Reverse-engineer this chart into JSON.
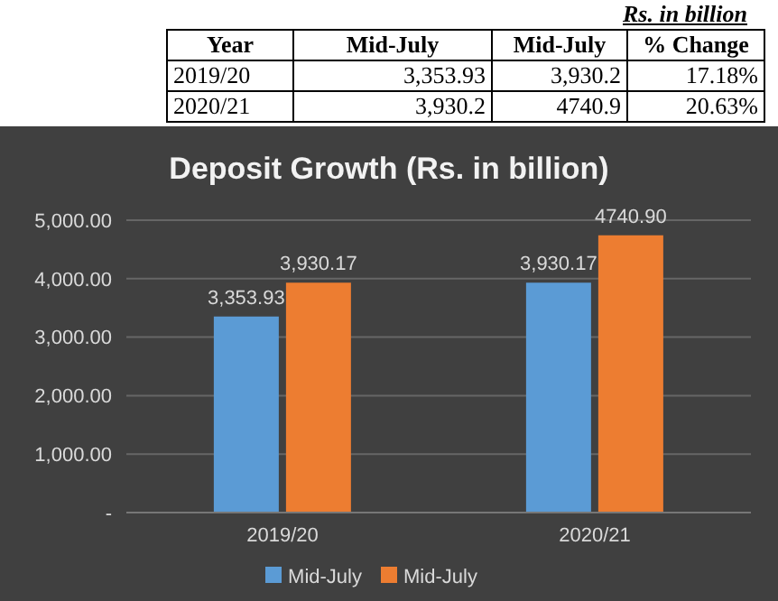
{
  "chart_data": {
    "type": "bar",
    "title": "Deposit Growth (Rs. in billion)",
    "categories": [
      "2019/20",
      "2020/21"
    ],
    "series": [
      {
        "name": "Mid-July",
        "color": "#5b9bd5",
        "values": [
          3353.93,
          3930.17
        ],
        "value_labels": [
          "3,353.93",
          "3,930.17"
        ]
      },
      {
        "name": "Mid-July",
        "color": "#ed7d31",
        "values": [
          3930.17,
          4740.9
        ],
        "value_labels": [
          "3,930.17",
          "4740.90"
        ]
      }
    ],
    "ylim": [
      0,
      5000
    ],
    "yticks": [
      {
        "value": 0,
        "label": "-"
      },
      {
        "value": 1000,
        "label": "1,000.00"
      },
      {
        "value": 2000,
        "label": "2,000.00"
      },
      {
        "value": 3000,
        "label": "3,000.00"
      },
      {
        "value": 4000,
        "label": "4,000.00"
      },
      {
        "value": 5000,
        "label": "5,000.00"
      }
    ],
    "grid": "y",
    "legend": "bottom",
    "annotations": [
      "Rs. in billion",
      "Year",
      "Mid-July",
      "Mid-July",
      "% Change",
      "2019/20",
      "3,353.93",
      "3,930.2",
      "17.18%",
      "2020/21",
      "3,930.2",
      "4740.9",
      "20.63%"
    ]
  }
}
